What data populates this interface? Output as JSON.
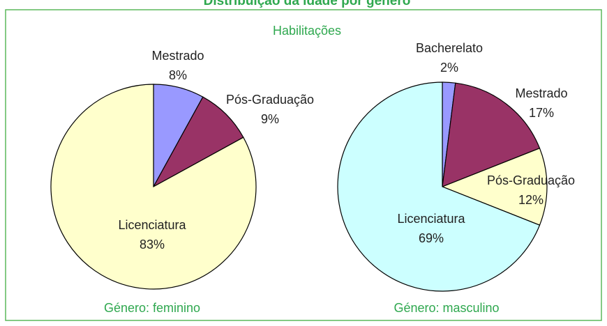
{
  "title": "Distribuição da idade por género",
  "subtitle": "Habilitações",
  "chart_data": [
    {
      "type": "pie",
      "caption": "Género: feminino",
      "categories": [
        "Mestrado",
        "Pós-Graduação",
        "Licenciatura"
      ],
      "values": [
        8,
        9,
        83
      ],
      "value_labels": [
        "8%",
        "9%",
        "83%"
      ],
      "colors": [
        "#9999ff",
        "#993366",
        "#ffffcc"
      ]
    },
    {
      "type": "pie",
      "caption": "Género: masculino",
      "categories": [
        "Bacherelato",
        "Mestrado",
        "Pós-Graduação",
        "Licenciatura"
      ],
      "values": [
        2,
        17,
        12,
        69
      ],
      "value_labels": [
        "2%",
        "17%",
        "12%",
        "69%"
      ],
      "colors": [
        "#9999ff",
        "#993366",
        "#ffffcc",
        "#ccffff"
      ]
    }
  ]
}
